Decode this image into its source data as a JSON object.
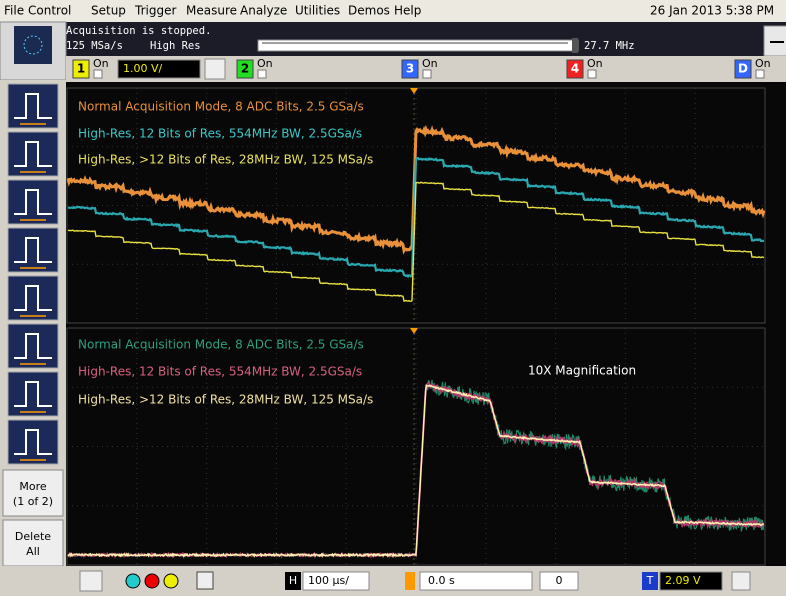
{
  "menu": [
    "File",
    "Control",
    "Setup",
    "Trigger",
    "Measure",
    "Analyze",
    "Utilities",
    "Demos",
    "Help"
  ],
  "datetime": "26 Jan 2013 5:38 PM",
  "status": {
    "message": "Acquisition is stopped.",
    "sample_rate": "125 MSa/s",
    "mode": "High Res",
    "bandwidth": "27.7 MHz"
  },
  "channels": [
    {
      "label": "1",
      "state": "On",
      "scale": "1.00 V/"
    },
    {
      "label": "2",
      "state": "On"
    },
    {
      "label": "3",
      "state": "On"
    },
    {
      "label": "4",
      "state": "On"
    },
    {
      "label": "D",
      "state": "On"
    }
  ],
  "toolbar": {
    "more": "More",
    "more_page": "(1 of 2)",
    "delete": "Delete",
    "delete_all": "All"
  },
  "upper_annotations": [
    "Normal Acquisition Mode, 8 ADC Bits, 2.5 GSa/s",
    "High-Res, 12 Bits of Res, 554MHz BW, 2.5GSa/s",
    "High-Res, >12 Bits of Res, 28MHz BW, 125 MSa/s"
  ],
  "lower_annotations": [
    "Normal Acquisition Mode, 8 ADC Bits, 2.5 GSa/s",
    "High-Res, 12 Bits of Res, 554MHz BW, 2.5GSa/s",
    "High-Res, >12 Bits of Res, 28MHz BW, 125 MSa/s"
  ],
  "magnification": "10X Magnification",
  "bottom": {
    "horizontal_label": "H",
    "time_scale": "100 µs/",
    "delay": "0.0 s",
    "delay_step": "0",
    "trigger_label": "T",
    "trigger_level": "2.09 V"
  }
}
